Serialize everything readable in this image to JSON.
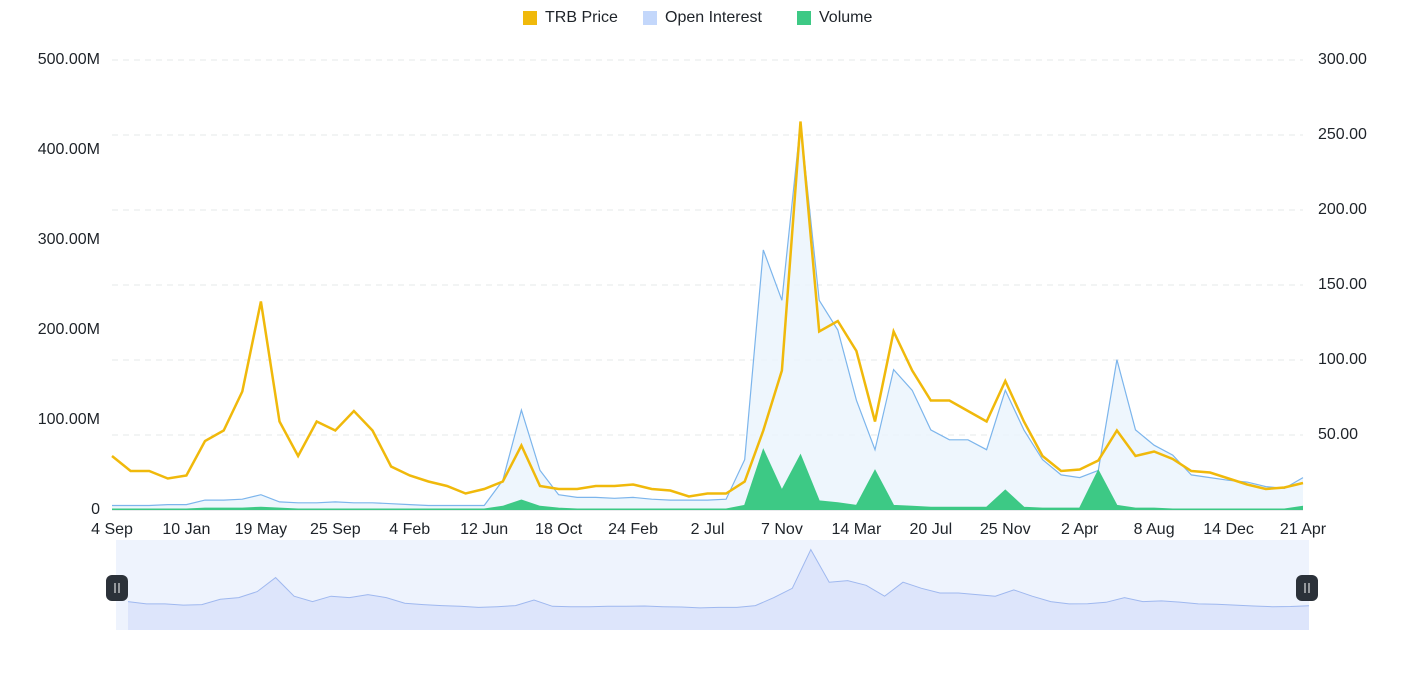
{
  "chart_data": {
    "type": "line",
    "categories": [
      "4 Sep",
      null,
      null,
      null,
      "10 Jan",
      null,
      null,
      null,
      "19 May",
      null,
      null,
      null,
      "25 Sep",
      null,
      null,
      null,
      "4 Feb",
      null,
      null,
      null,
      "12 Jun",
      null,
      null,
      null,
      "18 Oct",
      null,
      null,
      null,
      "24 Feb",
      null,
      null,
      null,
      "2 Jul",
      null,
      null,
      null,
      "7 Nov",
      null,
      null,
      null,
      "14 Mar",
      null,
      null,
      null,
      "20 Jul",
      null,
      null,
      null,
      "25 Nov",
      null,
      null,
      null,
      "2 Apr",
      null,
      null,
      null,
      "8 Aug",
      null,
      null,
      null,
      "14 Dec",
      null,
      null,
      null,
      "21 Apr"
    ],
    "series": [
      {
        "name": "TRB Price",
        "color": "#f0b90b",
        "axis": "y2",
        "values": [
          36,
          26,
          26,
          21,
          23,
          46,
          53,
          79,
          139,
          59,
          36,
          59,
          53,
          66,
          53,
          29,
          23,
          19,
          16,
          11,
          14,
          19,
          43,
          16,
          14,
          14,
          16,
          16,
          17,
          14,
          13,
          9,
          11,
          11,
          19,
          53,
          93,
          259,
          119,
          126,
          106,
          59,
          119,
          93,
          73,
          73,
          66,
          59,
          86,
          59,
          36,
          26,
          27,
          33,
          53,
          36,
          39,
          34,
          26,
          25,
          21,
          17,
          14,
          15,
          18
        ]
      },
      {
        "name": "Open Interest",
        "color": "#7cb5ec",
        "values": [
          5000000,
          5000000,
          5000000,
          6000000,
          6000000,
          11000000,
          11000000,
          12000000,
          17000000,
          9000000,
          8000000,
          8000000,
          9000000,
          8000000,
          8000000,
          7000000,
          6000000,
          5000000,
          5000000,
          5000000,
          5000000,
          33000000,
          111000000,
          44000000,
          17000000,
          14000000,
          14000000,
          13000000,
          14000000,
          12000000,
          11000000,
          11000000,
          11000000,
          12000000,
          56000000,
          289000000,
          233000000,
          430000000,
          233000000,
          200000000,
          122000000,
          67000000,
          156000000,
          133000000,
          89000000,
          78000000,
          78000000,
          67000000,
          133000000,
          89000000,
          56000000,
          39000000,
          36000000,
          44000000,
          167000000,
          89000000,
          72000000,
          61000000,
          39000000,
          36000000,
          33000000,
          31000000,
          26000000,
          24000000,
          36000000
        ]
      },
      {
        "name": "Volume",
        "color": "#3dc985",
        "values": [
          1000000,
          1000000,
          1000000,
          1000000,
          1000000,
          2000000,
          2000000,
          2000000,
          3000000,
          2000000,
          1000000,
          1000000,
          1000000,
          1000000,
          1000000,
          1000000,
          1000000,
          1000000,
          1000000,
          1000000,
          1000000,
          4000000,
          11000000,
          4000000,
          2000000,
          1000000,
          1000000,
          1000000,
          1000000,
          1000000,
          1000000,
          1000000,
          1000000,
          1000000,
          5000000,
          67000000,
          22000000,
          61000000,
          10000000,
          8000000,
          5000000,
          44000000,
          5000000,
          4000000,
          3000000,
          3000000,
          3000000,
          3000000,
          22000000,
          3000000,
          2000000,
          2000000,
          2000000,
          44000000,
          5000000,
          2000000,
          2000000,
          1000000,
          1000000,
          1000000,
          1000000,
          1000000,
          1000000,
          1000000,
          4000000
        ]
      }
    ],
    "ylim": [
      0,
      500000000
    ],
    "yticks": [
      0,
      {
        "value": 100000000,
        "label": "100.00M"
      },
      {
        "value": 200000000,
        "label": "200.00M"
      },
      {
        "value": 300000000,
        "label": "300.00M"
      },
      {
        "value": 400000000,
        "label": "400.00M"
      },
      {
        "value": 500000000,
        "label": "500.00M"
      }
    ],
    "y2lim": [
      0,
      300
    ],
    "y2ticks": [
      {
        "value": 50,
        "label": "50.00"
      },
      {
        "value": 100,
        "label": "100.00"
      },
      {
        "value": 150,
        "label": "150.00"
      },
      {
        "value": 200,
        "label": "200.00"
      },
      {
        "value": 250,
        "label": "250.00"
      },
      {
        "value": 300,
        "label": "300.00"
      }
    ],
    "grid": true,
    "legend": "top"
  }
}
